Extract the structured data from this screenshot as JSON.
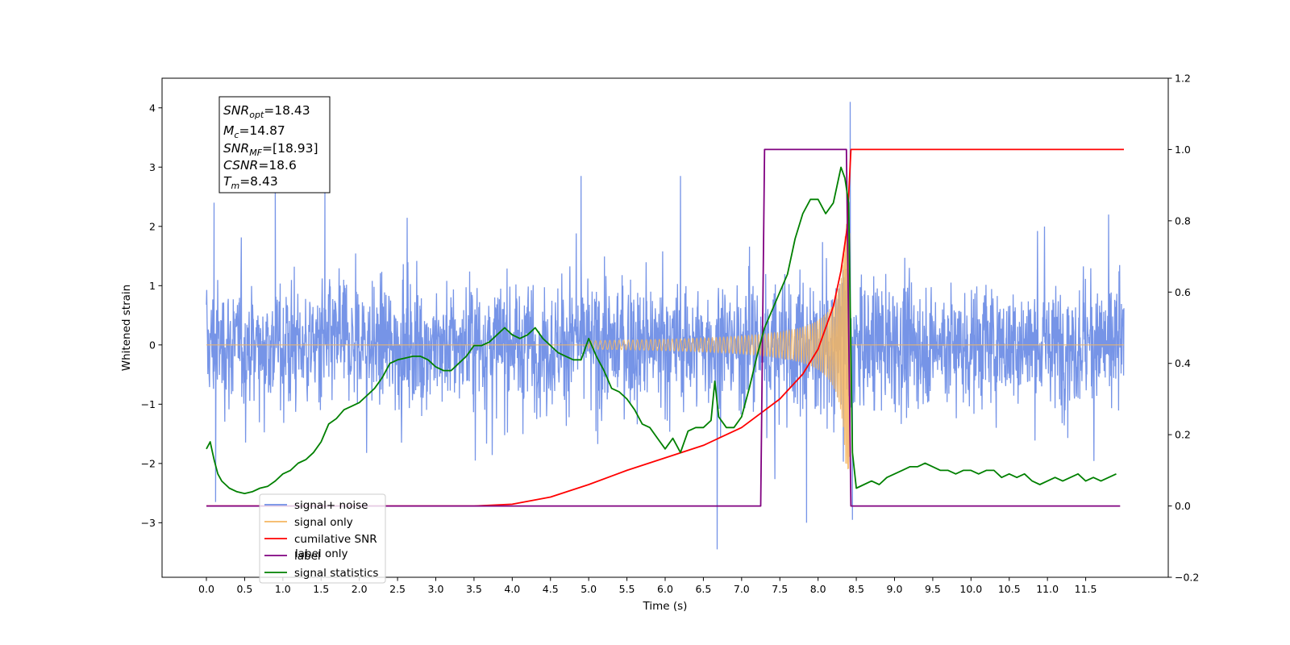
{
  "chart_data": {
    "type": "line",
    "xlabel": "Time (s)",
    "ylabel_left": "Whitened strain",
    "ylabel_right": "",
    "xlim": [
      -0.58,
      12.58
    ],
    "ylim_left": [
      -3.92,
      4.5
    ],
    "ylim_right": [
      -0.2,
      1.2
    ],
    "x_ticks": [
      0.0,
      0.5,
      1.0,
      1.5,
      2.0,
      2.5,
      3.0,
      3.5,
      4.0,
      4.5,
      5.0,
      5.5,
      6.0,
      6.5,
      7.0,
      7.5,
      8.0,
      8.5,
      9.0,
      9.5,
      10.0,
      10.5,
      11.0,
      11.5
    ],
    "x_tick_labels": [
      "0.0",
      "0.5",
      "1.0",
      "1.5",
      "2.0",
      "2.5",
      "3.0",
      "3.5",
      "4.0",
      "4.5",
      "5.0",
      "5.5",
      "6.0",
      "6.5",
      "7.0",
      "7.5",
      "8.0",
      "8.5",
      "9.0",
      "9.5",
      "10.0",
      "10.5",
      "11.0",
      "11.5"
    ],
    "y_left_ticks": [
      -3,
      -2,
      -1,
      0,
      1,
      2,
      3,
      4
    ],
    "y_left_tick_labels": [
      "−3",
      "−2",
      "−1",
      "0",
      "1",
      "2",
      "3",
      "4"
    ],
    "y_right_ticks": [
      -0.2,
      0.0,
      0.2,
      0.4,
      0.6,
      0.8,
      1.0,
      1.2
    ],
    "y_right_tick_labels": [
      "−0.2",
      "0.0",
      "0.2",
      "0.4",
      "0.6",
      "0.8",
      "1.0",
      "1.2"
    ],
    "grid": false,
    "legend_position": "lower-left",
    "annotation": [
      {
        "symbol": "SNR",
        "sub": "opt",
        "value": "=18.43"
      },
      {
        "symbol": "M",
        "sub": "c",
        "value": "=14.87"
      },
      {
        "symbol": "SNR",
        "sub": "MF",
        "value": "=[18.93]"
      },
      {
        "symbol": "CSNR",
        "sub": "",
        "value": "=18.6"
      },
      {
        "symbol": "T",
        "sub": "m",
        "value": "=8.43"
      }
    ],
    "series": [
      {
        "name": "signal+ noise",
        "axis": "left",
        "color": "#6f8ee6",
        "x_range": [
          0.0,
          12.0
        ],
        "envelope_typical": [
          -1.4,
          1.4
        ],
        "extreme_points": [
          {
            "x": 0.1,
            "y": 2.4
          },
          {
            "x": 0.12,
            "y": -2.65
          },
          {
            "x": 0.9,
            "y": 2.75
          },
          {
            "x": 1.55,
            "y": 2.6
          },
          {
            "x": 4.9,
            "y": 2.85
          },
          {
            "x": 6.2,
            "y": 2.85
          },
          {
            "x": 6.68,
            "y": -3.45
          },
          {
            "x": 7.85,
            "y": -3.0
          },
          {
            "x": 8.42,
            "y": 4.1
          },
          {
            "x": 8.45,
            "y": -2.95
          },
          {
            "x": 11.8,
            "y": 2.2
          }
        ]
      },
      {
        "name": "signal only",
        "axis": "left",
        "color": "#f5b661",
        "description_values": {
          "chirp_start": 5.0,
          "merger_time": 8.43,
          "peak_amplitude": 2.1
        }
      },
      {
        "name": "cumilative SNR",
        "axis": "right",
        "color": "#ff0000",
        "x": [
          0.0,
          3.5,
          4.0,
          4.5,
          5.0,
          5.5,
          6.0,
          6.5,
          7.0,
          7.5,
          7.8,
          8.0,
          8.2,
          8.3,
          8.38,
          8.43,
          8.45,
          12.0
        ],
        "y": [
          0.0,
          0.0,
          0.005,
          0.025,
          0.06,
          0.1,
          0.135,
          0.17,
          0.22,
          0.3,
          0.37,
          0.44,
          0.56,
          0.66,
          0.78,
          1.0,
          1.0,
          1.0
        ]
      },
      {
        "name": "label",
        "axis": "right",
        "color": "#800080",
        "x": [
          0.0,
          7.25,
          7.3,
          8.37,
          8.43,
          11.95
        ],
        "y": [
          0.0,
          0.0,
          1.0,
          1.0,
          0.0,
          0.0
        ]
      },
      {
        "name": "signal statistics",
        "axis": "right",
        "color": "#008000",
        "x": [
          0.0,
          0.05,
          0.1,
          0.15,
          0.2,
          0.3,
          0.4,
          0.5,
          0.6,
          0.7,
          0.8,
          0.9,
          1.0,
          1.1,
          1.2,
          1.3,
          1.4,
          1.5,
          1.6,
          1.7,
          1.8,
          1.9,
          2.0,
          2.1,
          2.2,
          2.3,
          2.4,
          2.5,
          2.6,
          2.7,
          2.8,
          2.9,
          3.0,
          3.1,
          3.2,
          3.3,
          3.4,
          3.5,
          3.6,
          3.7,
          3.8,
          3.9,
          4.0,
          4.1,
          4.2,
          4.3,
          4.4,
          4.5,
          4.6,
          4.7,
          4.8,
          4.9,
          5.0,
          5.1,
          5.2,
          5.3,
          5.4,
          5.5,
          5.6,
          5.7,
          5.8,
          5.9,
          6.0,
          6.1,
          6.2,
          6.3,
          6.4,
          6.5,
          6.6,
          6.65,
          6.7,
          6.8,
          6.9,
          7.0,
          7.1,
          7.2,
          7.3,
          7.4,
          7.5,
          7.6,
          7.7,
          7.8,
          7.9,
          8.0,
          8.1,
          8.2,
          8.3,
          8.35,
          8.4,
          8.45,
          8.5,
          8.6,
          8.7,
          8.8,
          8.9,
          9.0,
          9.1,
          9.2,
          9.3,
          9.4,
          9.5,
          9.6,
          9.7,
          9.8,
          9.9,
          10.0,
          10.1,
          10.2,
          10.3,
          10.4,
          10.5,
          10.6,
          10.7,
          10.8,
          10.9,
          11.0,
          11.1,
          11.2,
          11.3,
          11.4,
          11.5,
          11.6,
          11.7,
          11.8,
          11.9
        ],
        "y": [
          0.16,
          0.18,
          0.13,
          0.09,
          0.07,
          0.05,
          0.04,
          0.035,
          0.04,
          0.05,
          0.055,
          0.07,
          0.09,
          0.1,
          0.12,
          0.13,
          0.15,
          0.18,
          0.23,
          0.245,
          0.27,
          0.28,
          0.29,
          0.31,
          0.33,
          0.36,
          0.4,
          0.41,
          0.415,
          0.42,
          0.42,
          0.41,
          0.39,
          0.38,
          0.38,
          0.4,
          0.42,
          0.45,
          0.45,
          0.46,
          0.48,
          0.5,
          0.48,
          0.47,
          0.48,
          0.5,
          0.47,
          0.45,
          0.43,
          0.42,
          0.41,
          0.41,
          0.47,
          0.42,
          0.38,
          0.33,
          0.32,
          0.3,
          0.27,
          0.23,
          0.22,
          0.19,
          0.16,
          0.19,
          0.15,
          0.21,
          0.22,
          0.22,
          0.24,
          0.35,
          0.25,
          0.22,
          0.22,
          0.25,
          0.33,
          0.42,
          0.5,
          0.55,
          0.6,
          0.65,
          0.75,
          0.82,
          0.86,
          0.86,
          0.82,
          0.85,
          0.95,
          0.92,
          0.85,
          0.15,
          0.05,
          0.06,
          0.07,
          0.06,
          0.08,
          0.09,
          0.1,
          0.11,
          0.11,
          0.12,
          0.11,
          0.1,
          0.1,
          0.09,
          0.1,
          0.1,
          0.09,
          0.1,
          0.1,
          0.08,
          0.09,
          0.08,
          0.09,
          0.07,
          0.06,
          0.07,
          0.08,
          0.07,
          0.08,
          0.09,
          0.07,
          0.08,
          0.07,
          0.08,
          0.09
        ]
      }
    ],
    "legend": [
      {
        "label": "signal+ noise",
        "color": "#6f8ee6"
      },
      {
        "label": "signal only",
        "color": "#f5b661"
      },
      {
        "label": "cumilative SNR",
        "color": "#ff0000"
      },
      {
        "label": "label",
        "color": "#800080"
      },
      {
        "label": "signal statistics",
        "color": "#008000"
      }
    ],
    "legend_hidden_text": [
      "label only"
    ]
  }
}
